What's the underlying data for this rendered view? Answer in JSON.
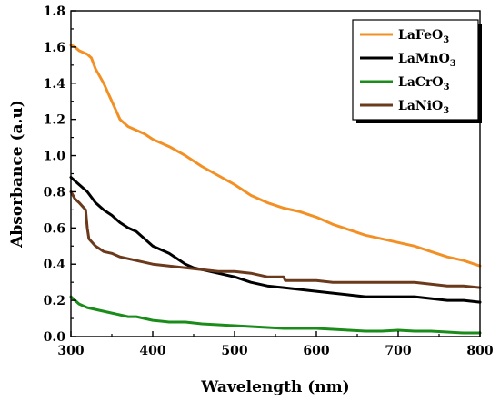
{
  "chart_data": {
    "type": "line",
    "xlabel": "Wavelength (nm)",
    "ylabel": "Absorbance (a.u)",
    "xlim": [
      300,
      800
    ],
    "ylim": [
      0.0,
      1.8
    ],
    "xticks": [
      300,
      400,
      500,
      600,
      700,
      800
    ],
    "xtick_labels": [
      "300",
      "400",
      "500",
      "600",
      "700",
      "800"
    ],
    "yticks": [
      0.0,
      0.2,
      0.4,
      0.6,
      0.8,
      1.0,
      1.2,
      1.4,
      1.6,
      1.8
    ],
    "ytick_labels": [
      "0.0",
      "0.2",
      "0.4",
      "0.6",
      "0.8",
      "1.0",
      "1.2",
      "1.4",
      "1.6",
      "1.8"
    ],
    "grid": false,
    "legend_position": "top-right",
    "series": [
      {
        "name": "LaFeO3",
        "label_parts": [
          "LaFeO",
          "3"
        ],
        "color": "#f39025",
        "x": [
          300,
          305,
          310,
          315,
          320,
          325,
          330,
          340,
          350,
          360,
          370,
          380,
          390,
          400,
          420,
          440,
          460,
          480,
          500,
          520,
          540,
          560,
          580,
          600,
          620,
          640,
          660,
          680,
          700,
          720,
          740,
          760,
          780,
          800
        ],
        "y": [
          1.61,
          1.6,
          1.58,
          1.57,
          1.56,
          1.54,
          1.48,
          1.4,
          1.3,
          1.2,
          1.16,
          1.14,
          1.12,
          1.09,
          1.05,
          1.0,
          0.94,
          0.89,
          0.84,
          0.78,
          0.74,
          0.71,
          0.69,
          0.66,
          0.62,
          0.59,
          0.56,
          0.54,
          0.52,
          0.5,
          0.47,
          0.44,
          0.42,
          0.39
        ]
      },
      {
        "name": "LaMnO3",
        "label_parts": [
          "LaMnO",
          "3"
        ],
        "color": "#000000",
        "x": [
          300,
          310,
          320,
          330,
          340,
          350,
          360,
          370,
          380,
          390,
          400,
          410,
          420,
          430,
          440,
          450,
          460,
          480,
          500,
          520,
          540,
          560,
          580,
          600,
          620,
          640,
          660,
          680,
          700,
          720,
          740,
          760,
          780,
          800
        ],
        "y": [
          0.88,
          0.84,
          0.8,
          0.74,
          0.7,
          0.67,
          0.63,
          0.6,
          0.58,
          0.54,
          0.5,
          0.48,
          0.46,
          0.43,
          0.4,
          0.38,
          0.37,
          0.35,
          0.33,
          0.3,
          0.28,
          0.27,
          0.26,
          0.25,
          0.24,
          0.23,
          0.22,
          0.22,
          0.22,
          0.22,
          0.21,
          0.2,
          0.2,
          0.19
        ]
      },
      {
        "name": "LaCrO3",
        "label_parts": [
          "LaCrO",
          "3"
        ],
        "color": "#1a8c1a",
        "x": [
          300,
          305,
          310,
          320,
          330,
          340,
          350,
          360,
          370,
          380,
          390,
          400,
          410,
          420,
          440,
          460,
          480,
          500,
          520,
          540,
          560,
          580,
          600,
          620,
          640,
          660,
          680,
          700,
          720,
          740,
          760,
          780,
          800
        ],
        "y": [
          0.22,
          0.2,
          0.18,
          0.16,
          0.15,
          0.14,
          0.13,
          0.12,
          0.11,
          0.11,
          0.1,
          0.09,
          0.085,
          0.08,
          0.08,
          0.07,
          0.065,
          0.06,
          0.055,
          0.05,
          0.045,
          0.045,
          0.045,
          0.04,
          0.035,
          0.03,
          0.03,
          0.035,
          0.03,
          0.03,
          0.025,
          0.02,
          0.02
        ]
      },
      {
        "name": "LaNiO3",
        "label_parts": [
          "LaNiO",
          "3"
        ],
        "color": "#6b3a1c",
        "x": [
          300,
          305,
          310,
          318,
          320,
          322,
          330,
          340,
          350,
          360,
          370,
          380,
          390,
          400,
          420,
          440,
          460,
          480,
          500,
          520,
          540,
          560,
          562,
          580,
          600,
          620,
          640,
          660,
          680,
          700,
          720,
          740,
          760,
          780,
          800
        ],
        "y": [
          0.8,
          0.76,
          0.74,
          0.7,
          0.6,
          0.54,
          0.5,
          0.47,
          0.46,
          0.44,
          0.43,
          0.42,
          0.41,
          0.4,
          0.39,
          0.38,
          0.37,
          0.36,
          0.36,
          0.35,
          0.33,
          0.33,
          0.31,
          0.31,
          0.31,
          0.3,
          0.3,
          0.3,
          0.3,
          0.3,
          0.3,
          0.29,
          0.28,
          0.28,
          0.27
        ]
      }
    ]
  }
}
